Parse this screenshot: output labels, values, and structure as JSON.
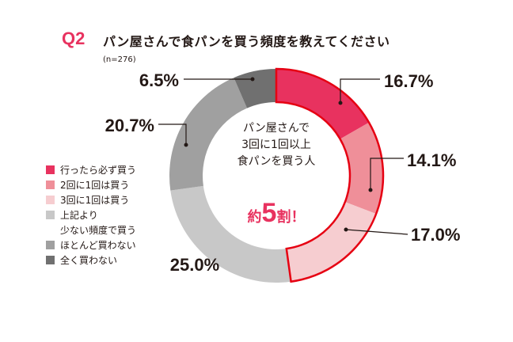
{
  "question_label": "Q2",
  "title": "パン屋さんで食パンを買う頻度を教えてください",
  "sample": "(n=276)",
  "center_text": [
    "パン屋さんで",
    "3回に1回以上",
    "食パンを買う人"
  ],
  "center_highlight": {
    "pre": "約",
    "num": "5",
    "post": "割！"
  },
  "chart_data": {
    "type": "pie",
    "donut": true,
    "categories": [
      "行ったら必ず買う",
      "2回に1回は買う",
      "3回に1回は買う",
      "上記より少ない頻度で買う",
      "ほとんど買わない",
      "全く買わない"
    ],
    "legend_lines": [
      [
        "行ったら必ず買う"
      ],
      [
        "2回に1回は買う"
      ],
      [
        "3回に1回は買う"
      ],
      [
        "上記より",
        "少ない頻度で買う"
      ],
      [
        "ほとんど買わない"
      ],
      [
        "全く買わない"
      ]
    ],
    "values": [
      16.7,
      14.1,
      17.0,
      25.0,
      20.7,
      6.5
    ],
    "labels": [
      "16.7%",
      "14.1%",
      "17.0%",
      "25.0%",
      "20.7%",
      "6.5%"
    ],
    "colors": [
      "#e8325f",
      "#ef8f99",
      "#f6cdd0",
      "#c8c8c8",
      "#a0a0a0",
      "#707070"
    ],
    "highlight_outline_color": "#e60012",
    "highlighted_categories": [
      0,
      1,
      2
    ],
    "legend_position": "left"
  }
}
